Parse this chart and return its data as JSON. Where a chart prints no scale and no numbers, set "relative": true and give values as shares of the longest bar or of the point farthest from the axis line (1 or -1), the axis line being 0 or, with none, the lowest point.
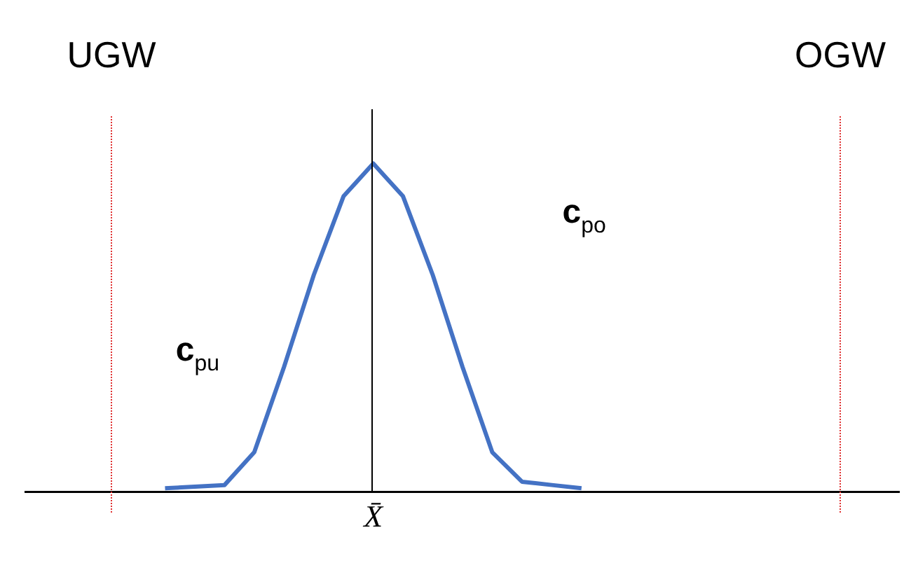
{
  "chart_data": {
    "type": "line",
    "relative": true,
    "marker": "none",
    "line_style": "solid",
    "categories": [
      null,
      null,
      null,
      null,
      null,
      null,
      null,
      null,
      null,
      null,
      null,
      null,
      null,
      null,
      null
    ],
    "series": [
      {
        "color": "#4472c4",
        "values": [
          0.01,
          0.015,
          0.02,
          0.12,
          0.38,
          0.66,
          0.9,
          1,
          0.9,
          0.66,
          0.38,
          0.12,
          0.03,
          0.02,
          0.01
        ]
      }
    ],
    "annotations": [
      "UGW",
      "OGW",
      "c$_{pu}$",
      "c$_{po}$",
      "X̄"
    ]
  }
}
